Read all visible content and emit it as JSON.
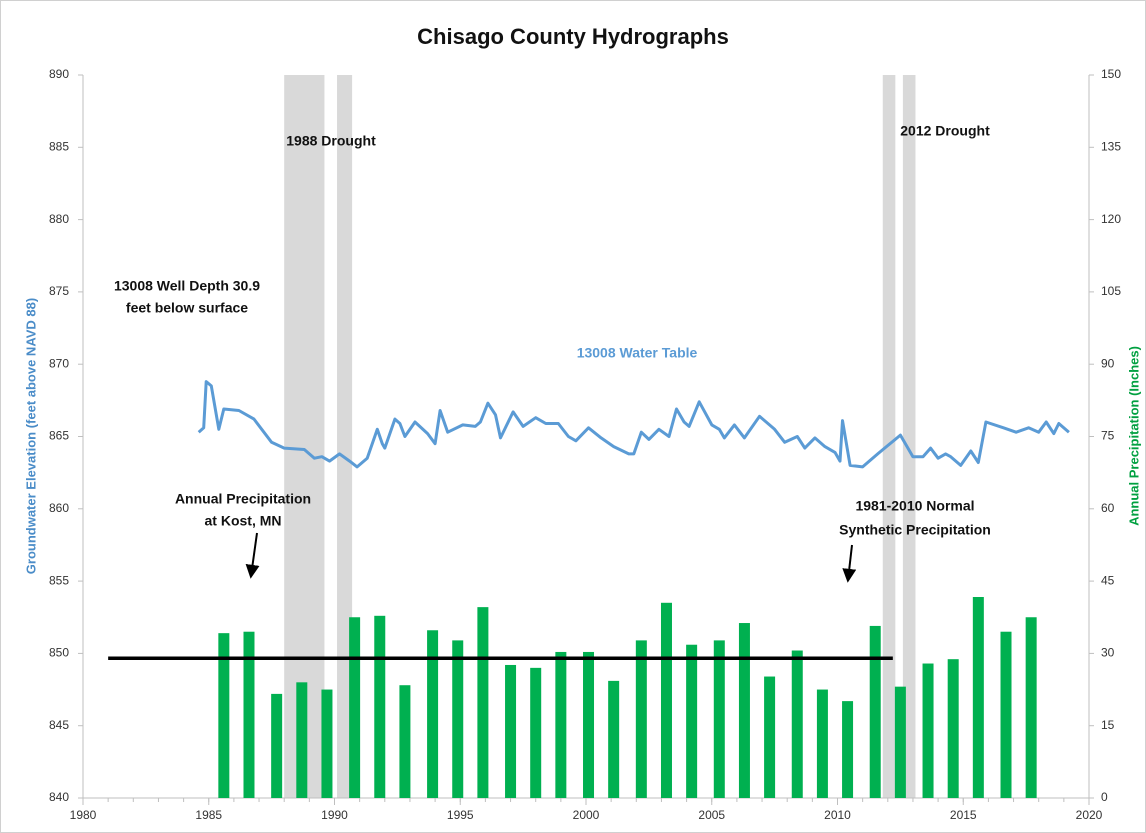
{
  "chart_data": {
    "type": "bar_line_combo",
    "title": "Chisago County Hydrographs",
    "y_label": "Groundwater Elevation  (feet above NAVD 88)",
    "y2_label": "Annual Precipitation (Inches)",
    "xlim": [
      1980,
      2020
    ],
    "xticks": [
      1980,
      1985,
      1990,
      1995,
      2000,
      2005,
      2010,
      2015,
      2020
    ],
    "ylim": [
      840,
      890
    ],
    "yticks": [
      840,
      845,
      850,
      855,
      860,
      865,
      870,
      875,
      880,
      885,
      890
    ],
    "y2lim": [
      0,
      150
    ],
    "y2ticks": [
      0,
      15,
      30,
      45,
      60,
      75,
      90,
      105,
      120,
      135,
      150
    ],
    "grid": false,
    "shaded_periods": [
      [
        1988.0,
        1989.6
      ],
      [
        1990.1,
        1990.7
      ],
      [
        2011.8,
        2012.3
      ],
      [
        2012.6,
        2013.1
      ]
    ],
    "shade_color": "#d9d9d9",
    "bars": {
      "axis": "y2",
      "color": "#00b050",
      "x": [
        1985.6,
        1986.6,
        1987.7,
        1988.7,
        1989.7,
        1990.8,
        1991.8,
        1992.8,
        1993.9,
        1994.9,
        1995.9,
        1997.0,
        1998.0,
        1999.0,
        2000.1,
        2001.1,
        2002.2,
        2003.2,
        2004.2,
        2005.3,
        2006.3,
        2007.3,
        2008.4,
        2009.4,
        2010.4,
        2011.5,
        2012.5,
        2013.6,
        2014.6,
        2015.6,
        2016.7,
        2017.7
      ],
      "values": [
        34.2,
        34.5,
        21.6,
        24,
        22.5,
        37.5,
        37.8,
        23.4,
        34.8,
        32.7,
        39.6,
        27.6,
        27,
        30.3,
        30.3,
        24.3,
        32.7,
        40.5,
        31.8,
        32.7,
        36.3,
        25.2,
        30.6,
        22.5,
        20.1,
        35.7,
        23.1,
        27.9,
        28.8,
        41.7,
        34.5,
        37.5
      ]
    },
    "series": [
      {
        "name": "13008 Water Table",
        "color": "#5b9bd5",
        "axis": "y",
        "x": [
          1984.6,
          1984.8,
          1984.9,
          1985.1,
          1985.3,
          1985.4,
          1985.6,
          1986.2,
          1986.8,
          1987.5,
          1988.0,
          1988.8,
          1989.2,
          1989.5,
          1989.8,
          1990.2,
          1990.6,
          1990.9,
          1991.3,
          1991.7,
          1991.9,
          1992.0,
          1992.4,
          1992.6,
          1992.8,
          1993.2,
          1993.7,
          1994.0,
          1994.2,
          1994.5,
          1995.1,
          1995.6,
          1995.8,
          1996.1,
          1996.4,
          1996.6,
          1997.1,
          1997.5,
          1998.0,
          1998.4,
          1998.9,
          1999.3,
          1999.6,
          2000.1,
          2000.6,
          2001.1,
          2001.7,
          2001.9,
          2002.2,
          2002.5,
          2002.9,
          2003.3,
          2003.6,
          2003.9,
          2004.1,
          2004.5,
          2005.0,
          2005.3,
          2005.5,
          2005.9,
          2006.3,
          2006.9,
          2007.5,
          2007.9,
          2008.4,
          2008.7,
          2009.1,
          2009.5,
          2009.9,
          2010.1,
          2010.2,
          2010.5,
          2011.0,
          2011.6,
          2012.5,
          2013.0,
          2013.4,
          2013.7,
          2014.0,
          2014.3,
          2014.5,
          2014.9,
          2015.3,
          2015.6,
          2015.9,
          2016.6,
          2017.1,
          2017.6,
          2018.0,
          2018.3,
          2018.6,
          2018.8,
          2019.2
        ],
        "values": [
          865.3,
          865.6,
          868.8,
          868.5,
          866.5,
          865.5,
          866.9,
          866.8,
          866.2,
          864.6,
          864.2,
          864.1,
          863.5,
          863.6,
          863.3,
          863.8,
          863.3,
          862.9,
          863.5,
          865.5,
          864.5,
          864.2,
          866.2,
          865.9,
          865.0,
          866.0,
          865.2,
          864.5,
          866.8,
          865.3,
          865.8,
          865.7,
          866.0,
          867.3,
          866.5,
          864.9,
          866.7,
          865.7,
          866.3,
          865.9,
          865.9,
          865.0,
          864.7,
          865.6,
          864.9,
          864.3,
          863.8,
          863.8,
          865.3,
          864.8,
          865.5,
          865.0,
          866.9,
          866.0,
          865.7,
          867.4,
          865.8,
          865.5,
          864.9,
          865.8,
          864.9,
          866.4,
          865.5,
          864.6,
          865.0,
          864.2,
          864.9,
          864.3,
          863.9,
          863.3,
          866.1,
          863.0,
          862.9,
          863.8,
          865.1,
          863.6,
          863.6,
          864.2,
          863.5,
          863.8,
          863.6,
          863.0,
          864.0,
          863.2,
          866.0,
          865.6,
          865.3,
          865.6,
          865.3,
          866.0,
          865.2,
          865.9,
          865.3
        ]
      }
    ],
    "reference_line": {
      "axis": "y2",
      "value": 29,
      "x": [
        1981,
        2012.2
      ],
      "color": "#000000"
    },
    "annotations": [
      "1988 Drought",
      "2012 Drought",
      "13008 Well Depth 30.9",
      "feet below surface",
      "Annual Precipitation",
      "at Kost, MN",
      "1981-2010  Normal",
      "Synthetic Precipitation"
    ]
  }
}
